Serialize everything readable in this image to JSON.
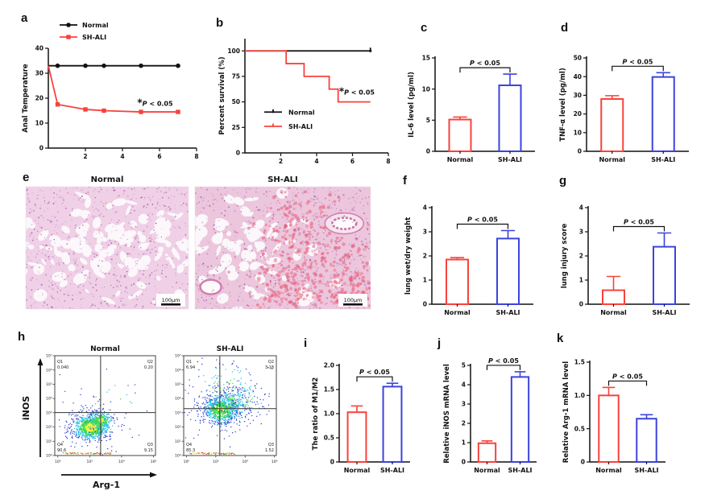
{
  "panels": {
    "a": "a",
    "b": "b",
    "c": "c",
    "d": "d",
    "e": "e",
    "f": "f",
    "g": "g",
    "h": "h",
    "i": "i",
    "j": "j",
    "k": "k"
  },
  "colors": {
    "red": "#f8423c",
    "blue": "#3b43de",
    "black": "#111111"
  },
  "groups": [
    "Normal",
    "SH-ALI"
  ],
  "chart_data": [
    {
      "id": "a",
      "type": "line",
      "ylabel": "Anal Temperature",
      "xlabel": "",
      "xlim": [
        0,
        8
      ],
      "ylim": [
        0,
        40
      ],
      "xticks": [
        2,
        4,
        6,
        8
      ],
      "yticks": [
        0,
        10,
        20,
        30,
        40
      ],
      "legend": [
        "Normal",
        "SH-ALI"
      ],
      "legend_position": "top-left",
      "annotation": {
        "text": "*P < 0.05",
        "x": 4.8,
        "y": 17
      },
      "series": [
        {
          "name": "Normal",
          "color": "#111111",
          "marker": "circle",
          "x": [
            0,
            0.5,
            2,
            3,
            5,
            7
          ],
          "y": [
            33,
            33,
            33,
            33,
            33,
            33
          ]
        },
        {
          "name": "SH-ALI",
          "color": "#f8423c",
          "marker": "square",
          "x": [
            0,
            0.5,
            2,
            3,
            5,
            7
          ],
          "y": [
            33,
            17.5,
            15.5,
            15,
            14.5,
            14.5
          ]
        }
      ]
    },
    {
      "id": "b",
      "type": "line",
      "ylabel": "Percent survival (%)",
      "xlabel": "",
      "xlim": [
        0,
        8
      ],
      "ylim": [
        0,
        112
      ],
      "xticks": [
        2,
        4,
        6,
        8
      ],
      "yticks": [
        0,
        25,
        50,
        75,
        100
      ],
      "legend": [
        "Normal",
        "SH-ALI"
      ],
      "legend_position": "inside-bottom-left",
      "annotation": {
        "text": "*P < 0.05",
        "x": 5.25,
        "y": 57
      },
      "series": [
        {
          "name": "Normal",
          "color": "#111111",
          "end_tick": true,
          "x": [
            0,
            7
          ],
          "y": [
            100,
            100
          ]
        },
        {
          "name": "SH-ALI",
          "color": "#f8423c",
          "x": [
            0,
            2.3,
            2.3,
            3.3,
            3.3,
            4.7,
            4.7,
            5.2,
            5.2,
            7
          ],
          "y": [
            100,
            100,
            87.5,
            87.5,
            75,
            75,
            62.5,
            62.5,
            50,
            50
          ]
        }
      ]
    },
    {
      "id": "c",
      "type": "bar",
      "ylabel": "IL-6 level (pg/ml)",
      "ylim": [
        0,
        15
      ],
      "yticks": [
        0,
        5,
        10,
        15
      ],
      "categories": [
        "Normal",
        "SH-ALI"
      ],
      "values": [
        5.1,
        10.6
      ],
      "errors": [
        0.4,
        1.8
      ],
      "bar_colors": [
        "#f8423c",
        "#3b43de"
      ],
      "p_label": "P < 0.05"
    },
    {
      "id": "d",
      "type": "bar",
      "ylabel": "TNF-α level (pg/ml)",
      "ylim": [
        0,
        50
      ],
      "yticks": [
        0,
        10,
        20,
        30,
        40,
        50
      ],
      "categories": [
        "Normal",
        "SH-ALI"
      ],
      "values": [
        28,
        39.8
      ],
      "errors": [
        1.8,
        2.3
      ],
      "bar_colors": [
        "#f8423c",
        "#3b43de"
      ],
      "p_label": "P < 0.05"
    },
    {
      "id": "f",
      "type": "bar",
      "ylabel": "lung wet/dry weight",
      "ylim": [
        0,
        4
      ],
      "yticks": [
        0,
        1,
        2,
        3,
        4
      ],
      "categories": [
        "Normal",
        "SH-ALI"
      ],
      "values": [
        1.85,
        2.72
      ],
      "errors": [
        0.08,
        0.33
      ],
      "bar_colors": [
        "#f8423c",
        "#3b43de"
      ],
      "p_label": "P < 0.05"
    },
    {
      "id": "g",
      "type": "bar",
      "ylabel": "lung injury score",
      "ylim": [
        0,
        4
      ],
      "yticks": [
        0,
        1,
        2,
        3,
        4
      ],
      "categories": [
        "Normal",
        "SH-ALI"
      ],
      "values": [
        0.58,
        2.38
      ],
      "errors": [
        0.57,
        0.57
      ],
      "bar_colors": [
        "#f8423c",
        "#3b43de"
      ],
      "p_label": "P < 0.05"
    },
    {
      "id": "i",
      "type": "bar",
      "ylabel": "The ratio of M1/M2",
      "ylim": [
        0,
        2
      ],
      "yticks": [
        0,
        0.5,
        1,
        1.5,
        2
      ],
      "ytick_labels": [
        "0",
        "0.5",
        "1.0",
        "1.5",
        "2.0"
      ],
      "categories": [
        "Normal",
        "SH-ALI"
      ],
      "values": [
        1.03,
        1.56
      ],
      "errors": [
        0.13,
        0.07
      ],
      "bar_colors": [
        "#f8423c",
        "#3b43de"
      ],
      "p_label": "P < 0.05"
    },
    {
      "id": "j",
      "type": "bar",
      "ylabel": "Relative iNOS mRNA level",
      "ylim": [
        0,
        5
      ],
      "yticks": [
        0,
        1,
        2,
        3,
        4,
        5
      ],
      "categories": [
        "Normal",
        "SH-ALI"
      ],
      "values": [
        0.97,
        4.4
      ],
      "errors": [
        0.12,
        0.27
      ],
      "bar_colors": [
        "#f8423c",
        "#3b43de"
      ],
      "p_label": "P < 0.05"
    },
    {
      "id": "k",
      "type": "bar",
      "ylabel": "Relative Arg-1 mRNA level",
      "ylim": [
        0,
        1.5
      ],
      "yticks": [
        0,
        0.5,
        1,
        1.5
      ],
      "ytick_labels": [
        "0",
        "0.5",
        "1.0",
        "1.5"
      ],
      "categories": [
        "Normal",
        "SH-ALI"
      ],
      "values": [
        1.0,
        0.65
      ],
      "errors": [
        0.12,
        0.06
      ],
      "bar_colors": [
        "#f8423c",
        "#3b43de"
      ],
      "p_label": "P < 0.05"
    },
    {
      "id": "h",
      "type": "scatter",
      "subtype": "flow_cytometry",
      "xlabel": "Arg-1",
      "ylabel": "iNOS",
      "xticks": [
        "10⁰",
        "10²",
        "10⁴",
        "10⁶"
      ],
      "yticks": [
        "10⁰",
        "10¹",
        "10²",
        "10³",
        "10⁴",
        "10⁵",
        "10⁶",
        "10⁷"
      ],
      "plots": [
        {
          "title": "Normal",
          "gate_x": 0.455,
          "gate_y": 0.57,
          "quadrants": [
            {
              "name": "Q1",
              "value": "0.040"
            },
            {
              "name": "Q2",
              "value": "0.20"
            },
            {
              "name": "Q3",
              "value": "9.15"
            },
            {
              "name": "Q4",
              "value": "90.6"
            }
          ]
        },
        {
          "title": "SH-ALI",
          "gate_x": 0.39,
          "gate_y": 0.53,
          "quadrants": [
            {
              "name": "Q1",
              "value": "6.94"
            },
            {
              "name": "Q2",
              "value": "3.18"
            },
            {
              "name": "Q3",
              "value": "1.52"
            },
            {
              "name": "Q4",
              "value": "85.3"
            }
          ]
        }
      ]
    }
  ],
  "histology": {
    "stain": "H&E lung sections",
    "images": [
      {
        "title": "Normal",
        "scale_bar": "100μm",
        "variant": "normal"
      },
      {
        "title": "SH-ALI",
        "scale_bar": "100μm",
        "variant": "shali"
      }
    ]
  }
}
